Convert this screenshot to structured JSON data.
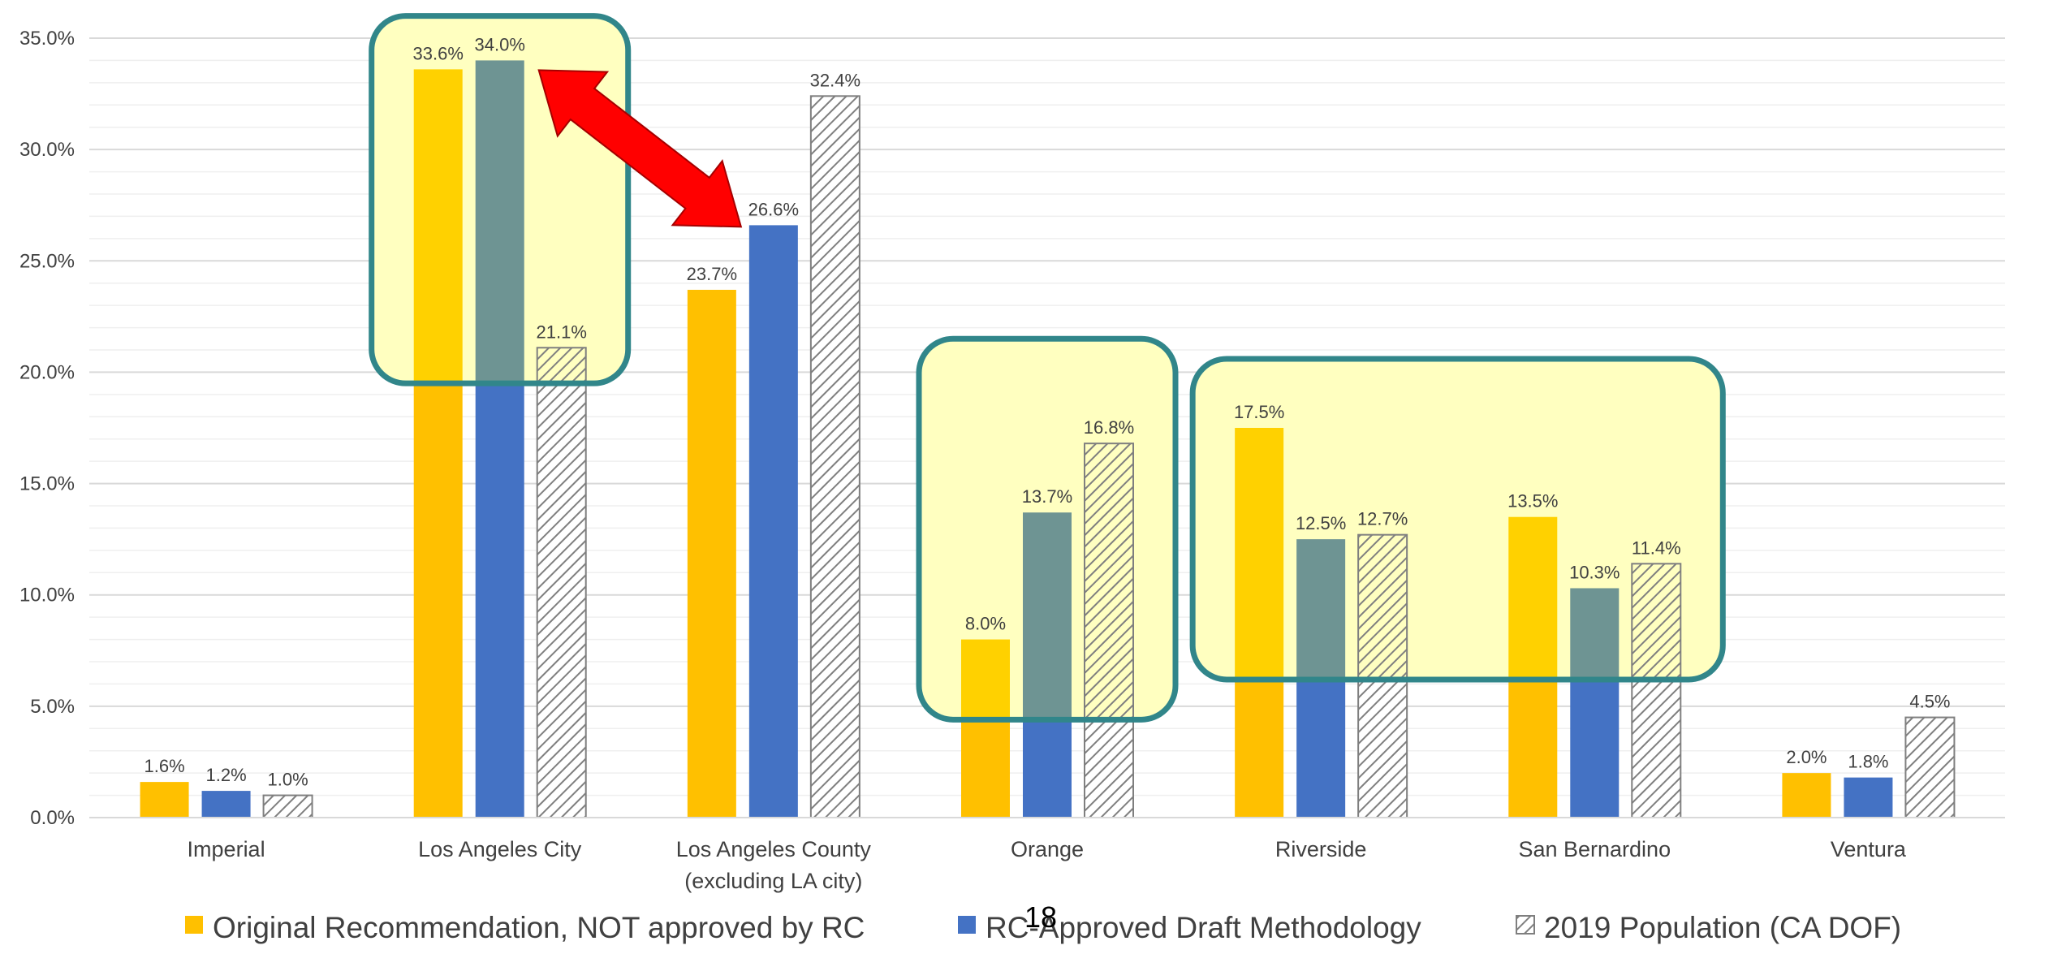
{
  "page_number": "18",
  "colors": {
    "original": "#FFC000",
    "approved": "#4472C4",
    "approved_in_highlight": "#6E9493",
    "population_hatch": "#7F7F7F",
    "highlight_fill": "#FFFFC0",
    "highlight_border": "#31868A",
    "arrow": "#FF0000",
    "gridline": "#E3E3E3"
  },
  "legend": {
    "items": [
      {
        "label": "Original Recommendation, NOT approved by RC",
        "color": "#FFC000",
        "pattern": "solid"
      },
      {
        "label": "RC-Approved Draft Methodology",
        "color": "#4472C4",
        "pattern": "solid"
      },
      {
        "label": "2019 Population (CA DOF)",
        "color": "#7F7F7F",
        "pattern": "hatch"
      }
    ]
  },
  "chart_data": {
    "type": "bar",
    "title": "",
    "xlabel": "",
    "ylabel": "",
    "ylim": [
      0,
      35
    ],
    "y_ticks": [
      {
        "value": 0,
        "label": "0.0%"
      },
      {
        "value": 5,
        "label": "5.0%"
      },
      {
        "value": 10,
        "label": "10.0%"
      },
      {
        "value": 15,
        "label": "15.0%"
      },
      {
        "value": 20,
        "label": "20.0%"
      },
      {
        "value": 25,
        "label": "25.0%"
      },
      {
        "value": 30,
        "label": "30.0%"
      },
      {
        "value": 35,
        "label": "35.0%"
      }
    ],
    "grid": true,
    "legend_position": "bottom",
    "categories": [
      [
        "Imperial"
      ],
      [
        "Los Angeles City"
      ],
      [
        "Los Angeles County",
        "(excluding LA city)"
      ],
      [
        "Orange"
      ],
      [
        "Riverside"
      ],
      [
        "San Bernardino"
      ],
      [
        "Ventura"
      ]
    ],
    "series": [
      {
        "name": "Original Recommendation, NOT approved by RC",
        "values": [
          1.6,
          33.6,
          23.7,
          8.0,
          17.5,
          13.5,
          2.0
        ],
        "labels": [
          "1.6%",
          "33.6%",
          "23.7%",
          "8.0%",
          "17.5%",
          "13.5%",
          "2.0%"
        ]
      },
      {
        "name": "RC-Approved Draft Methodology",
        "values": [
          1.2,
          34.0,
          26.6,
          13.7,
          12.5,
          10.3,
          1.8
        ],
        "labels": [
          "1.2%",
          "34.0%",
          "26.6%",
          "13.7%",
          "12.5%",
          "10.3%",
          "1.8%"
        ]
      },
      {
        "name": "2019 Population (CA DOF)",
        "values": [
          1.0,
          21.1,
          32.4,
          16.8,
          12.7,
          11.4,
          4.5
        ],
        "labels": [
          "1.0%",
          "21.1%",
          "32.4%",
          "16.8%",
          "12.7%",
          "11.4%",
          "4.5%"
        ]
      }
    ],
    "annotations": {
      "highlight_boxes": [
        {
          "categories": [
            1
          ],
          "y_range": [
            19.5,
            36.0
          ]
        },
        {
          "categories": [
            3
          ],
          "y_range": [
            4.4,
            21.5
          ]
        },
        {
          "categories": [
            4,
            5
          ],
          "y_range": [
            6.2,
            20.6
          ]
        }
      ],
      "double_arrow": {
        "from": {
          "category": 1,
          "series": 1,
          "value": 34.0
        },
        "to": {
          "category": 2,
          "series": 1,
          "value": 26.6
        }
      }
    }
  }
}
